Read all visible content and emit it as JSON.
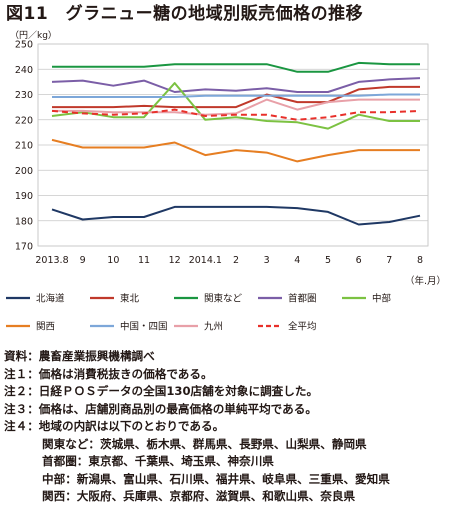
{
  "title": "図11　グラニュー糖の地域別販売価格の推移",
  "chart_data": {
    "type": "line",
    "unit_label": "（円／kg）",
    "xlabel": "（年.月）",
    "x": [
      "2013.8",
      "9",
      "10",
      "11",
      "12",
      "2014.1",
      "2",
      "3",
      "4",
      "5",
      "6",
      "7",
      "8"
    ],
    "ylim": [
      170,
      250
    ],
    "yticks": [
      170,
      180,
      190,
      200,
      210,
      220,
      230,
      240,
      250
    ],
    "grid": true,
    "legend_position": "bottom",
    "series": [
      {
        "name": "北海道",
        "color": "#1f3864",
        "dash": false,
        "values": [
          184.5,
          180.5,
          181.5,
          181.5,
          185.5,
          185.5,
          185.5,
          185.5,
          185,
          183.5,
          178.5,
          179.5,
          182
        ]
      },
      {
        "name": "東北",
        "color": "#c0392b",
        "dash": false,
        "values": [
          225,
          225,
          225,
          225.5,
          225,
          225,
          225,
          230,
          227,
          227,
          232,
          233,
          233
        ]
      },
      {
        "name": "関東など",
        "color": "#1a9641",
        "dash": false,
        "values": [
          241,
          241,
          241,
          241,
          242,
          242,
          242,
          242,
          239,
          239,
          242.5,
          242,
          242
        ]
      },
      {
        "name": "首都圏",
        "color": "#7b5ea7",
        "dash": false,
        "values": [
          235,
          235.5,
          233.5,
          235.5,
          231,
          232,
          231.5,
          232.5,
          231,
          231,
          235,
          236,
          236.5
        ]
      },
      {
        "name": "中部",
        "color": "#7cc242",
        "dash": false,
        "values": [
          221.5,
          223,
          221,
          221,
          234.5,
          220,
          221,
          219.5,
          219,
          216.5,
          222,
          219.5,
          219.5
        ]
      },
      {
        "name": "関西",
        "color": "#e67e22",
        "dash": false,
        "values": [
          212,
          209,
          209,
          209,
          211,
          206,
          208,
          207,
          203.5,
          206,
          208,
          208,
          208
        ]
      },
      {
        "name": "中国・四国",
        "color": "#7da7d9",
        "dash": false,
        "values": [
          229,
          229,
          229,
          229,
          229,
          229.5,
          229.5,
          229.5,
          229.5,
          229.5,
          229.5,
          230,
          230
        ]
      },
      {
        "name": "九州",
        "color": "#e8a0a8",
        "dash": false,
        "values": [
          223.5,
          223.5,
          223,
          223,
          223,
          222,
          222.5,
          228,
          224,
          227,
          228,
          228,
          228
        ]
      },
      {
        "name": "全平均",
        "color": "#e8302a",
        "dash": true,
        "values": [
          223.5,
          222.5,
          222,
          222.5,
          224,
          221.5,
          222,
          222,
          220,
          221,
          223,
          223,
          223.5
        ]
      }
    ]
  },
  "notes": [
    {
      "label": "資料：",
      "text": "農畜産業振興機構調べ"
    },
    {
      "label": "注１：",
      "text": "価格は消費税抜きの価格である。"
    },
    {
      "label": "注２：",
      "text": "日経ＰＯＳデータの全国130店舗を対象に調査した。"
    },
    {
      "label": "注３：",
      "text": "価格は、店舗別商品別の最高価格の単純平均である。"
    },
    {
      "label": "注４：",
      "text": "地域の内訳は以下のとおりである。"
    }
  ],
  "regions": [
    "関東など：茨城県、栃木県、群馬県、長野県、山梨県、静岡県",
    "首都圏：東京都、千葉県、埼玉県、神奈川県",
    "中部：新潟県、富山県、石川県、福井県、岐阜県、三重県、愛知県",
    "関西：大阪府、兵庫県、京都府、滋賀県、和歌山県、奈良県"
  ]
}
